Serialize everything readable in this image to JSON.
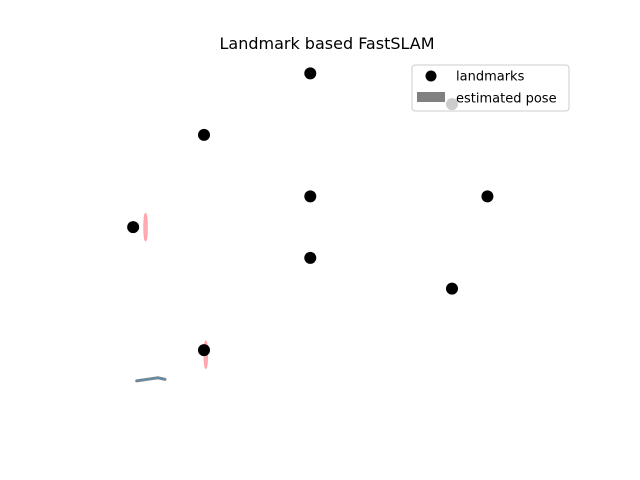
{
  "chart_data": {
    "type": "scatter",
    "title": "Landmark based FastSLAM",
    "xlabel": "",
    "ylabel": "",
    "axes_visible": false,
    "grid": false,
    "legend_placement": "top-right",
    "xlim": [
      -0.5,
      13.5
    ],
    "ylim": [
      -1.5,
      10.5
    ],
    "series": [
      {
        "name": "landmarks",
        "kind": "points",
        "color": "#000000",
        "points": [
          {
            "x": 6,
            "y": 10
          },
          {
            "x": 10,
            "y": 9
          },
          {
            "x": 3,
            "y": 8
          },
          {
            "x": 6,
            "y": 6
          },
          {
            "x": 11,
            "y": 6
          },
          {
            "x": 1,
            "y": 5
          },
          {
            "x": 6,
            "y": 4
          },
          {
            "x": 10,
            "y": 3
          },
          {
            "x": 3,
            "y": 1
          }
        ]
      },
      {
        "name": "estimated pose",
        "kind": "band",
        "color": "#808080",
        "trail_color": "#5b8fb0",
        "points": [
          {
            "x": 1.1,
            "y": 0.0
          },
          {
            "x": 1.4,
            "y": 0.05
          },
          {
            "x": 1.7,
            "y": 0.1
          },
          {
            "x": 1.9,
            "y": 0.05
          }
        ]
      }
    ],
    "uncertainty_ellipses": [
      {
        "cx": 1.35,
        "cy": 5.0,
        "rx": 0.05,
        "ry": 0.45,
        "color": "#ff9aa2"
      },
      {
        "cx": 3.05,
        "cy": 0.85,
        "rx": 0.05,
        "ry": 0.45,
        "color": "#ff9aa2"
      }
    ]
  }
}
